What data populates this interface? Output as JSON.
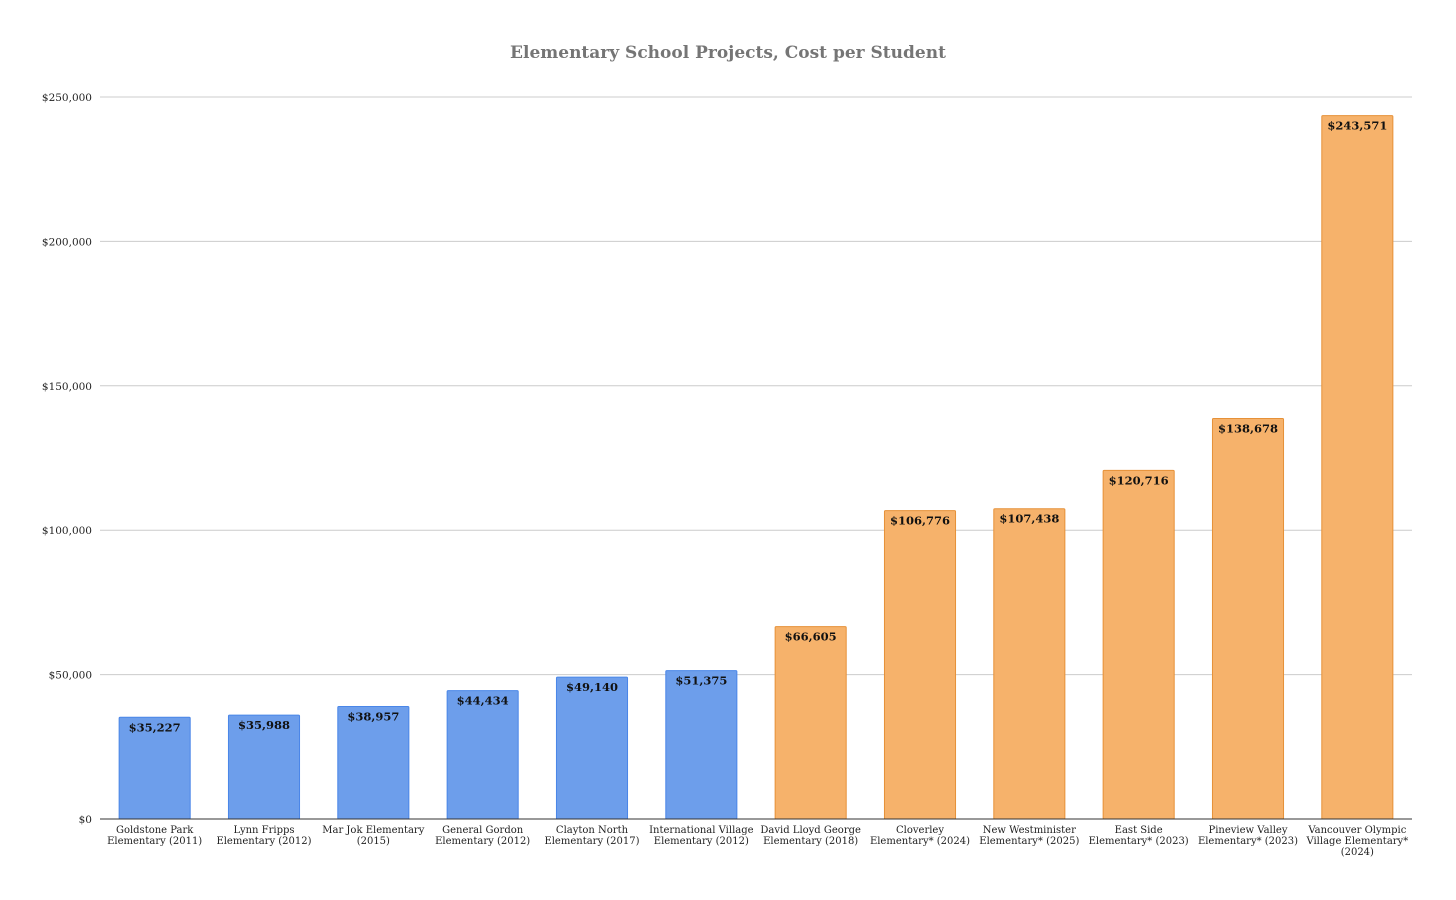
{
  "chart_data": {
    "type": "bar",
    "title": "Elementary School Projects, Cost per Student",
    "xlabel": "",
    "ylabel": "",
    "ylim": [
      0,
      250000
    ],
    "yticks": [
      {
        "value": 0,
        "label": "$0"
      },
      {
        "value": 50000,
        "label": "$50,000"
      },
      {
        "value": 100000,
        "label": "$100,000"
      },
      {
        "value": 150000,
        "label": "$150,000"
      },
      {
        "value": 200000,
        "label": "$200,000"
      },
      {
        "value": 250000,
        "label": "$250,000"
      }
    ],
    "grid": true,
    "legend": "none",
    "colors": {
      "blue": "#6d9eeb",
      "blue_edge": "#4a86e8",
      "orange": "#f6b26b",
      "orange_edge": "#e69138"
    },
    "bars": [
      {
        "category": [
          "Goldstone Park",
          "Elementary (2011)"
        ],
        "value": 35227,
        "label": "$35,227",
        "color": "blue"
      },
      {
        "category": [
          "Lynn Fripps",
          "Elementary (2012)"
        ],
        "value": 35988,
        "label": "$35,988",
        "color": "blue"
      },
      {
        "category": [
          "Mar Jok Elementary",
          "(2015)"
        ],
        "value": 38957,
        "label": "$38,957",
        "color": "blue"
      },
      {
        "category": [
          "General Gordon",
          "Elementary (2012)"
        ],
        "value": 44434,
        "label": "$44,434",
        "color": "blue"
      },
      {
        "category": [
          "Clayton North",
          "Elementary (2017)"
        ],
        "value": 49140,
        "label": "$49,140",
        "color": "blue"
      },
      {
        "category": [
          "International Village",
          "Elementary (2012)"
        ],
        "value": 51375,
        "label": "$51,375",
        "color": "blue"
      },
      {
        "category": [
          "David Lloyd George",
          "Elementary (2018)"
        ],
        "value": 66605,
        "label": "$66,605",
        "color": "orange"
      },
      {
        "category": [
          "Cloverley",
          "Elementary* (2024)"
        ],
        "value": 106776,
        "label": "$106,776",
        "color": "orange"
      },
      {
        "category": [
          "New Westminister",
          "Elementary* (2025)"
        ],
        "value": 107438,
        "label": "$107,438",
        "color": "orange"
      },
      {
        "category": [
          "East Side",
          "Elementary* (2023)"
        ],
        "value": 120716,
        "label": "$120,716",
        "color": "orange"
      },
      {
        "category": [
          "Pineview Valley",
          "Elementary* (2023)"
        ],
        "value": 138678,
        "label": "$138,678",
        "color": "orange"
      },
      {
        "category": [
          "Vancouver Olympic",
          "Village Elementary*",
          "(2024)"
        ],
        "value": 243571,
        "label": "$243,571",
        "color": "orange"
      }
    ]
  }
}
